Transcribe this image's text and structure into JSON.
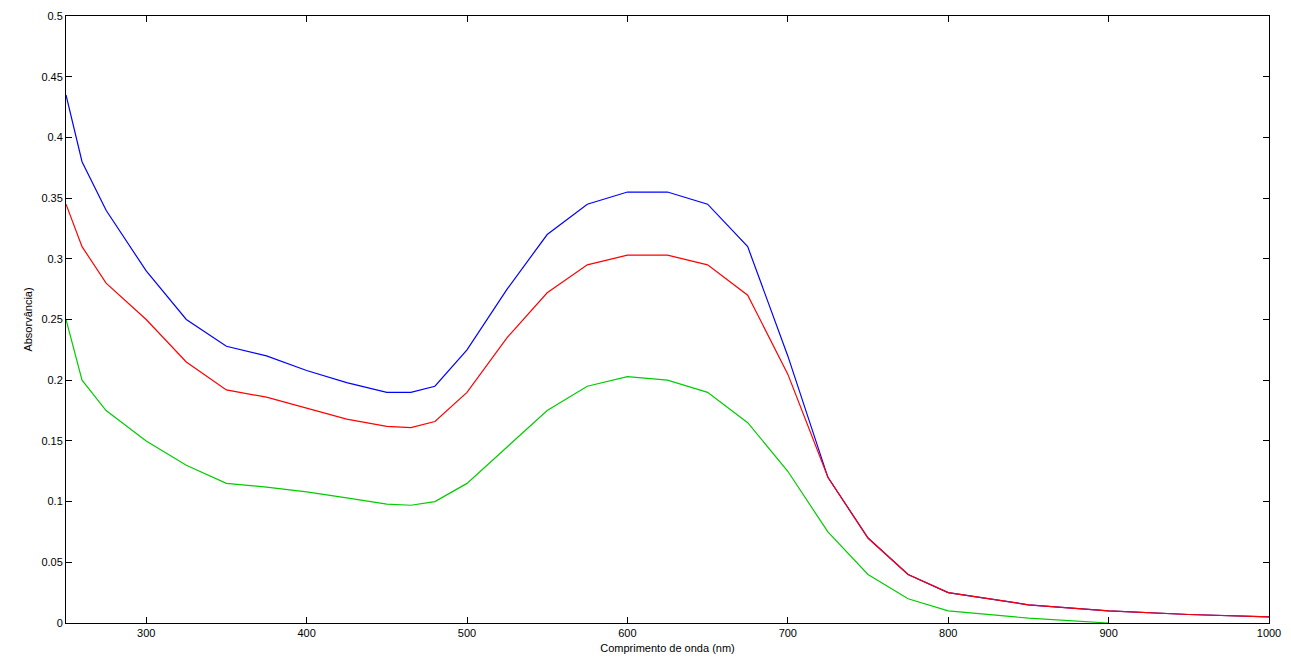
{
  "chart_data": {
    "type": "line",
    "x_label": "Comprimento de onda (nm)",
    "y_label": "Absorvância)",
    "x": [
      250,
      260,
      275,
      300,
      325,
      350,
      375,
      400,
      425,
      450,
      465,
      480,
      500,
      525,
      550,
      575,
      600,
      625,
      650,
      675,
      700,
      725,
      750,
      775,
      800,
      850,
      900,
      950,
      1000
    ],
    "series": [
      {
        "color": "#0000ff",
        "values": [
          0.435,
          0.38,
          0.34,
          0.29,
          0.25,
          0.228,
          0.22,
          0.208,
          0.198,
          0.19,
          0.19,
          0.195,
          0.225,
          0.275,
          0.32,
          0.345,
          0.355,
          0.355,
          0.345,
          0.31,
          0.22,
          0.12,
          0.07,
          0.04,
          0.025,
          0.015,
          0.01,
          0.007,
          0.005
        ]
      },
      {
        "color": "#ff0000",
        "values": [
          0.345,
          0.31,
          0.28,
          0.25,
          0.215,
          0.192,
          0.186,
          0.177,
          0.168,
          0.162,
          0.161,
          0.166,
          0.19,
          0.235,
          0.272,
          0.295,
          0.303,
          0.303,
          0.295,
          0.27,
          0.205,
          0.12,
          0.07,
          0.04,
          0.025,
          0.015,
          0.01,
          0.007,
          0.005
        ]
      },
      {
        "color": "#00cc00",
        "values": [
          0.25,
          0.2,
          0.175,
          0.15,
          0.13,
          0.115,
          0.112,
          0.108,
          0.103,
          0.098,
          0.097,
          0.1,
          0.115,
          0.145,
          0.175,
          0.195,
          0.203,
          0.2,
          0.19,
          0.165,
          0.125,
          0.075,
          0.04,
          0.02,
          0.01,
          0.004,
          0.0,
          null,
          null
        ]
      }
    ],
    "xlim": [
      250,
      1000
    ],
    "ylim": [
      0,
      0.5
    ],
    "xticks": [
      300,
      400,
      500,
      600,
      700,
      800,
      900,
      1000
    ],
    "yticks": [
      0,
      0.05,
      0.1,
      0.15,
      0.2,
      0.25,
      0.3,
      0.35,
      0.4,
      0.45,
      0.5
    ],
    "grid": false
  }
}
